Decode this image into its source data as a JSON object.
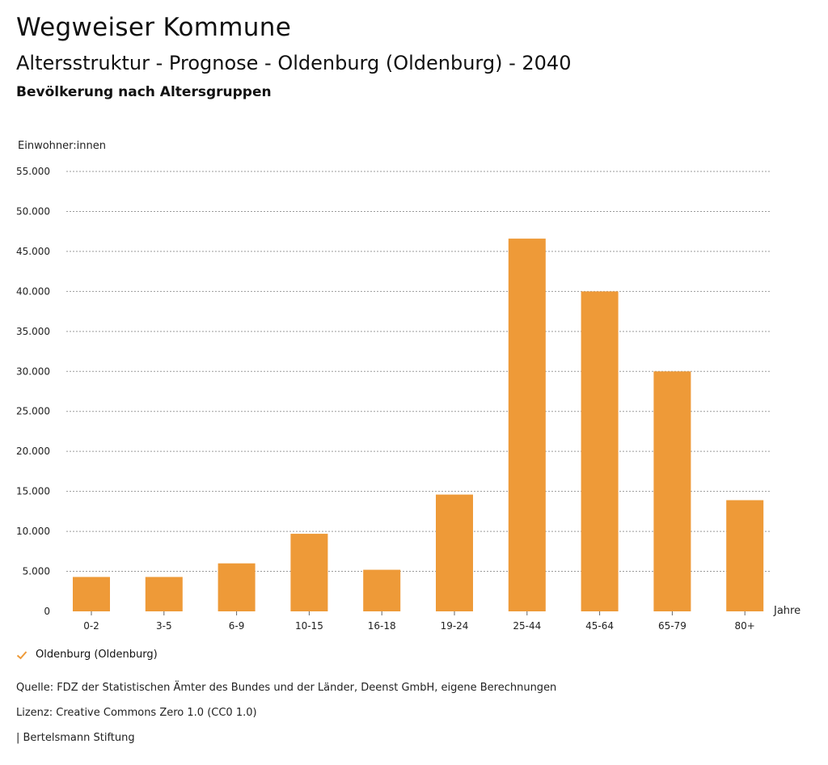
{
  "header": {
    "title": "Wegweiser Kommune",
    "subtitle": "Altersstruktur - Prognose - Oldenburg (Oldenburg) - 2040",
    "subsubtitle": "Bevölkerung nach Altersgruppen"
  },
  "chart_data": {
    "type": "bar",
    "ylabel": "Einwohner:innen",
    "xlabel": "Jahre",
    "categories": [
      "0-2",
      "3-5",
      "6-9",
      "10-15",
      "16-18",
      "19-24",
      "25-44",
      "45-64",
      "65-79",
      "80+"
    ],
    "series": [
      {
        "name": "Oldenburg (Oldenburg)",
        "values": [
          4300,
          4300,
          6000,
          9700,
          5200,
          14600,
          46600,
          40000,
          30000,
          13900
        ]
      }
    ],
    "ylim": [
      0,
      55000
    ],
    "yticks": [
      0,
      5000,
      10000,
      15000,
      20000,
      25000,
      30000,
      35000,
      40000,
      45000,
      50000,
      55000
    ],
    "ytick_labels": [
      "0",
      "5.000",
      "10.000",
      "15.000",
      "20.000",
      "25.000",
      "30.000",
      "35.000",
      "40.000",
      "45.000",
      "50.000",
      "55.000"
    ],
    "grid": true,
    "bar_color": "#ee9a38",
    "legend_position": "bottom-left"
  },
  "legend": {
    "label": "Oldenburg (Oldenburg)",
    "icon": "check-icon",
    "color": "#ee9a38"
  },
  "footer": {
    "source": "Quelle: FDZ der Statistischen Ämter des Bundes und der Länder, Deenst GmbH, eigene Berechnungen",
    "license": "Lizenz: Creative Commons Zero 1.0 (CC0 1.0)",
    "publisher": "| Bertelsmann Stiftung"
  }
}
